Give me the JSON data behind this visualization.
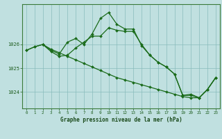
{
  "background_color": "#c0e0e0",
  "grid_color": "#88bbbb",
  "line_color": "#1a6b1a",
  "marker_color": "#1a6b1a",
  "xlabel": "Graphe pression niveau de la mer (hPa)",
  "xlim": [
    -0.5,
    23.5
  ],
  "ylim": [
    1023.3,
    1027.7
  ],
  "yticks": [
    1024,
    1025,
    1026
  ],
  "xticks": [
    0,
    1,
    2,
    3,
    4,
    5,
    6,
    7,
    8,
    9,
    10,
    11,
    12,
    13,
    14,
    15,
    16,
    17,
    18,
    19,
    20,
    21,
    22,
    23
  ],
  "series1": {
    "x": [
      0,
      1,
      2,
      3,
      4,
      5,
      6,
      7,
      8,
      9,
      10,
      11,
      12,
      13,
      14,
      15,
      16,
      17,
      18,
      19,
      20,
      21,
      22,
      23
    ],
    "y": [
      1025.75,
      1025.9,
      1026.0,
      1025.8,
      1025.65,
      1025.5,
      1025.35,
      1025.2,
      1025.05,
      1024.9,
      1024.75,
      1024.6,
      1024.5,
      1024.4,
      1024.3,
      1024.2,
      1024.1,
      1024.0,
      1023.9,
      1023.8,
      1023.75,
      1023.75,
      1024.1,
      1024.6
    ]
  },
  "series2": {
    "x": [
      0,
      1,
      2,
      3,
      4,
      5,
      6,
      7,
      8,
      9,
      10,
      11,
      12,
      13,
      14,
      15,
      16,
      17,
      18,
      19,
      20,
      21,
      22,
      23
    ],
    "y": [
      1025.75,
      1025.9,
      1026.0,
      1025.75,
      1025.6,
      1026.1,
      1026.25,
      1026.0,
      1026.45,
      1027.1,
      1027.35,
      1026.85,
      1026.65,
      1026.65,
      1025.95,
      1025.55,
      1025.25,
      1025.05,
      1024.75,
      1023.85,
      1023.85,
      1023.75,
      1024.1,
      1024.6
    ]
  },
  "series3": {
    "x": [
      2,
      3,
      4,
      5,
      6,
      7,
      8,
      9,
      10,
      11,
      12,
      13,
      14,
      15,
      16,
      17,
      18,
      19,
      20,
      21,
      22,
      23
    ],
    "y": [
      1026.0,
      1025.7,
      1025.5,
      1025.55,
      1025.85,
      1026.1,
      1026.35,
      1026.35,
      1026.7,
      1026.6,
      1026.55,
      1026.55,
      1026.0,
      1025.55,
      1025.25,
      1025.05,
      1024.75,
      1023.85,
      1023.9,
      1023.75,
      1024.1,
      1024.6
    ]
  }
}
